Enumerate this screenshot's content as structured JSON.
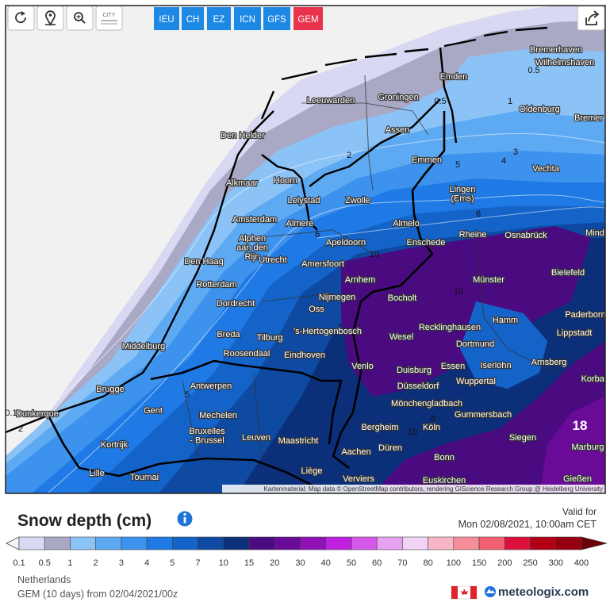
{
  "toolbar": {
    "city_button": "CITY",
    "models": [
      "IEU",
      "CH",
      "EZ",
      "ICN",
      "GFS",
      "GEM"
    ],
    "active_model": "GEM"
  },
  "map": {
    "cities": [
      "Bremerhaven",
      "Wilhelmshaven",
      "Emden",
      "Leeuwarden",
      "Groningen",
      "Oldenburg",
      "Bremer",
      "Assen",
      "Den Helder",
      "Emmen",
      "Vechta",
      "Alkmaar",
      "Hoorn",
      "Lelystad",
      "Zwolle",
      [
        "Lingen",
        "(Ems)"
      ],
      "Amsterdam",
      "Almere",
      "Almelo",
      "Rheine",
      "Osnabrück",
      "Mind",
      [
        "Alphen",
        "aan den",
        "Rijn"
      ],
      "Apeldoorn",
      "Enschede",
      "Den Haag",
      "Utrecht",
      "Amersfoort",
      "Bielefeld",
      "Arnhem",
      "Münster",
      "Rotterdam",
      "Nijmegen",
      "Bocholt",
      "Dordrecht",
      "Oss",
      "Paderborn",
      "Hamm",
      "Recklinghausen",
      "Breda",
      "'s-Hertogenbosch",
      "Tilburg",
      "Wesel",
      "Lippstadt",
      "Middelburg",
      "Dortmund",
      "Roosendaal",
      "Eindhoven",
      "Arnsberg",
      "Venlo",
      "Essen",
      "Iserlohn",
      "Duisburg",
      "Korbac",
      "Wuppertal",
      "Brugge",
      "Antwerpen",
      "Düsseldorf",
      "Mönchengladbach",
      "Gent",
      "Mechelen",
      "Gummersbach",
      "Dunkerque",
      "Bergheim",
      "Köln",
      "Marburg",
      [
        "Bruxelles",
        "- Brussel"
      ],
      "Leuven",
      "Maastricht",
      "Siegen",
      "Kortrijk",
      "Düren",
      "Aachen",
      "Bonn",
      "Lille",
      "Tournai",
      "Liège",
      "Verviers",
      "Euskirchen",
      "Gießen"
    ],
    "contour_labels": [
      "0.5",
      "0.5",
      "1",
      "2",
      "3",
      "4",
      "5",
      "6",
      "6",
      "10",
      "10",
      "10",
      "8",
      "18",
      "0.1",
      "2",
      "5"
    ],
    "attribution": "Kartenmaterial: Map data © OpenStreetMap contributors, rendering GIScience Research Group @ Heidelberg University"
  },
  "legend": {
    "title": "Snow depth (cm)",
    "valid_label": "Valid for",
    "valid_time": "Mon 02/08/2021, 10:00am CET",
    "levels": [
      0.1,
      0.5,
      1,
      2,
      3,
      4,
      5,
      7,
      10,
      15,
      20,
      30,
      40,
      50,
      60,
      70,
      80,
      100,
      150,
      200,
      250,
      300,
      400
    ],
    "below_color": "#f4f4ff",
    "colors": [
      "#d8d8f2",
      "#a9a9c6",
      "#8cc3f6",
      "#5eaaf2",
      "#3d92ee",
      "#1f7ae6",
      "#1463c8",
      "#0e4aa2",
      "#0c2f7a",
      "#4a0a80",
      "#6a0a98",
      "#9012b6",
      "#c020e0",
      "#d458ea",
      "#e6a2f0",
      "#f2d2f6",
      "#f6b6c8",
      "#f58e98",
      "#f06070",
      "#dc103c",
      "#b40016",
      "#960010",
      "#6a0008"
    ]
  },
  "footer": {
    "region": "Netherlands",
    "run": "GEM (10 days) from 02/04/2021/00z",
    "brand": "meteologix.com"
  }
}
